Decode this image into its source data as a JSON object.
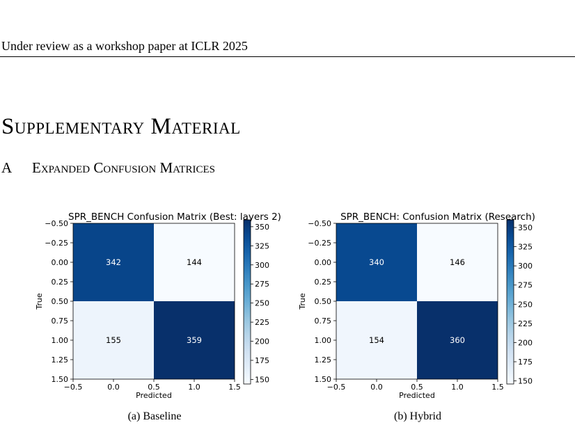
{
  "header": {
    "text": "Under review as a workshop paper at ICLR 2025"
  },
  "section": {
    "title": "Supplementary Material"
  },
  "subsection": {
    "number": "A",
    "title": "Expanded Confusion Matrices"
  },
  "figures": [
    {
      "caption": "(a) Baseline"
    },
    {
      "caption": "(b) Hybrid"
    }
  ],
  "chart_data": [
    {
      "type": "heatmap",
      "title": "SPR_BENCH Confusion Matrix (Best: layers 2)",
      "xlabel": "Predicted",
      "ylabel": "True",
      "xticks": [
        "−0.5",
        "0.0",
        "0.5",
        "1.0",
        "1.5"
      ],
      "yticks": [
        "−0.50",
        "−0.25",
        "0.00",
        "0.25",
        "0.50",
        "0.75",
        "1.00",
        "1.25",
        "1.50"
      ],
      "matrix": [
        [
          342,
          144
        ],
        [
          155,
          359
        ]
      ],
      "colorbar": {
        "min": 144,
        "max": 359,
        "ticks": [
          "150",
          "175",
          "200",
          "225",
          "250",
          "275",
          "300",
          "325",
          "350"
        ]
      },
      "colormap": "Blues"
    },
    {
      "type": "heatmap",
      "title": "SPR_BENCH: Confusion Matrix (Research)",
      "xlabel": "Predicted",
      "ylabel": "True",
      "xticks": [
        "−0.5",
        "0.0",
        "0.5",
        "1.0",
        "1.5"
      ],
      "yticks": [
        "−0.50",
        "−0.25",
        "0.00",
        "0.25",
        "0.50",
        "0.75",
        "1.00",
        "1.25",
        "1.50"
      ],
      "matrix": [
        [
          340,
          146
        ],
        [
          154,
          360
        ]
      ],
      "colorbar": {
        "min": 146,
        "max": 360,
        "ticks": [
          "150",
          "175",
          "200",
          "225",
          "250",
          "275",
          "300",
          "325",
          "350"
        ]
      },
      "colormap": "Blues"
    }
  ]
}
